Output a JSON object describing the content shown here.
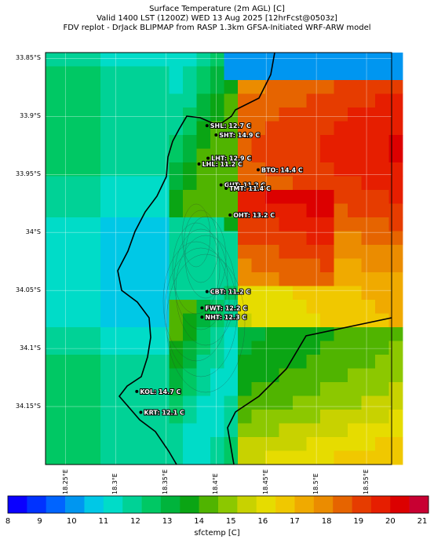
{
  "header": {
    "line1": "Surface Temperature (2m AGL) [C]",
    "line2": "Valid 1400 LST (1200Z) WED 13 Aug 2025 [12hrFcst@0503z]",
    "line3": "FDV replot - DrJack BLIPMAP from RASP 1.3km GFSA-Initiated WRF-ARW model"
  },
  "lat_labels": [
    "33.85°S",
    "33.9°S",
    "33.95°S",
    "34°S",
    "34.05°S",
    "34.1°S",
    "34.15°S"
  ],
  "lon_labels": [
    "18.25°E",
    "18.3°E",
    "18.35°E",
    "18.4°E",
    "18.45°E",
    "18.5°E",
    "18.55°E"
  ],
  "stations": [
    {
      "label": "SHL: 12.7 C",
      "lon": 18.391,
      "lat": -33.908
    },
    {
      "label": "SHT: 14.9 C",
      "lon": 18.4,
      "lat": -33.916
    },
    {
      "label": "LHT: 12.9 C",
      "lon": 18.392,
      "lat": -33.936
    },
    {
      "label": "LHL: 11.2 C",
      "lon": 18.383,
      "lat": -33.941
    },
    {
      "label": "BTO: 14.4 C",
      "lon": 18.442,
      "lat": -33.946
    },
    {
      "label": "GUT: 11.2 C",
      "lon": 18.405,
      "lat": -33.959
    },
    {
      "label": "TMT: 11.4 C",
      "lon": 18.41,
      "lat": -33.962
    },
    {
      "label": "OHT: 13.2 C",
      "lon": 18.414,
      "lat": -33.985
    },
    {
      "label": "CBT: 11.2 C",
      "lon": 18.391,
      "lat": -34.051
    },
    {
      "label": "FWT: 12.2 C",
      "lon": 18.386,
      "lat": -34.065
    },
    {
      "label": "NHT: 12.3 C",
      "lon": 18.386,
      "lat": -34.073
    },
    {
      "label": "KOL: 14.7 C",
      "lon": 18.321,
      "lat": -34.137
    },
    {
      "label": "KRT: 12.1 C",
      "lon": 18.325,
      "lat": -34.155
    }
  ],
  "colorbar": {
    "label": "sfctemp [C]",
    "ticks": [
      "8",
      "9",
      "10",
      "11",
      "12",
      "13",
      "14",
      "15",
      "16",
      "17",
      "18",
      "19",
      "20",
      "21"
    ],
    "colors": [
      "#0a00ff",
      "#0032ff",
      "#0064ff",
      "#0096f0",
      "#00c8e6",
      "#00dcc8",
      "#00d296",
      "#00c864",
      "#00b43c",
      "#0aa514",
      "#50b400",
      "#8cc800",
      "#c8d200",
      "#e6dc00",
      "#f0c800",
      "#f0aa00",
      "#eb8c00",
      "#e66400",
      "#e63c00",
      "#e61e00",
      "#dc0000",
      "#c80032"
    ]
  },
  "chart_data": {
    "type": "heatmap",
    "variable": "sfctemp",
    "units": "C",
    "xlim": [
      18.23,
      18.575
    ],
    "ylim": [
      -34.2,
      -33.845
    ]
  }
}
